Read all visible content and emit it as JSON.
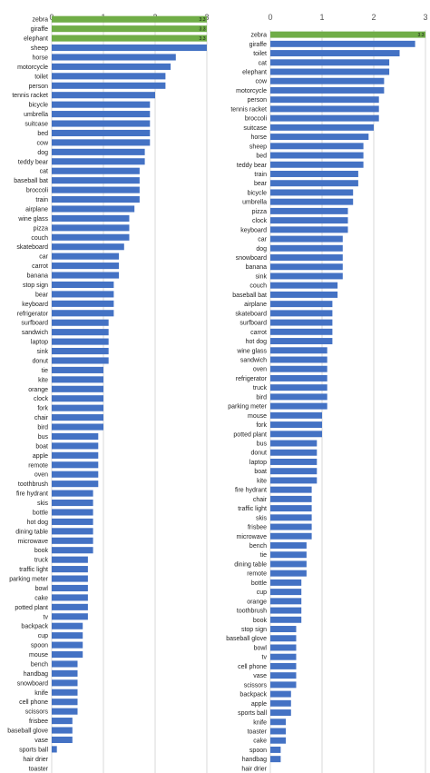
{
  "colors": {
    "bar": "#4472c4",
    "highlight": "#70ad47",
    "grid": "#d9d9d9"
  },
  "chart_data": [
    {
      "type": "bar",
      "orientation": "horizontal",
      "title": "",
      "xlabel": "",
      "ylabel": "",
      "xlim": [
        0,
        3
      ],
      "ticks": [
        0,
        1,
        2,
        3
      ],
      "grid": true,
      "categories": [
        "zebra",
        "giraffe",
        "elephant",
        "sheep",
        "horse",
        "motorcycle",
        "toilet",
        "person",
        "tennis racket",
        "bicycle",
        "umbrella",
        "suitcase",
        "bed",
        "cow",
        "dog",
        "teddy bear",
        "cat",
        "baseball bat",
        "broccoli",
        "train",
        "airplane",
        "wine glass",
        "pizza",
        "couch",
        "skateboard",
        "car",
        "carrot",
        "banana",
        "stop sign",
        "bear",
        "keyboard",
        "refrigerator",
        "surfboard",
        "sandwich",
        "laptop",
        "sink",
        "donut",
        "tie",
        "kite",
        "orange",
        "clock",
        "fork",
        "chair",
        "bird",
        "bus",
        "boat",
        "apple",
        "remote",
        "oven",
        "toothbrush",
        "fire hydrant",
        "skis",
        "bottle",
        "hot dog",
        "dining table",
        "microwave",
        "book",
        "truck",
        "traffic light",
        "parking meter",
        "bowl",
        "cake",
        "potted plant",
        "tv",
        "backpack",
        "cup",
        "spoon",
        "mouse",
        "bench",
        "handbag",
        "snowboard",
        "knife",
        "cell phone",
        "scissors",
        "frisbee",
        "baseball glove",
        "vase",
        "sports ball",
        "hair drier",
        "toaster"
      ],
      "values": [
        3.0,
        3.0,
        3.0,
        3.0,
        2.4,
        2.3,
        2.2,
        2.2,
        2.0,
        1.9,
        1.9,
        1.9,
        1.9,
        1.9,
        1.8,
        1.8,
        1.7,
        1.7,
        1.7,
        1.7,
        1.6,
        1.5,
        1.5,
        1.5,
        1.4,
        1.3,
        1.3,
        1.3,
        1.2,
        1.2,
        1.2,
        1.2,
        1.1,
        1.1,
        1.1,
        1.1,
        1.1,
        1.0,
        1.0,
        1.0,
        1.0,
        1.0,
        1.0,
        1.0,
        0.9,
        0.9,
        0.9,
        0.9,
        0.9,
        0.9,
        0.8,
        0.8,
        0.8,
        0.8,
        0.8,
        0.8,
        0.8,
        0.7,
        0.7,
        0.7,
        0.7,
        0.7,
        0.7,
        0.7,
        0.6,
        0.6,
        0.6,
        0.6,
        0.5,
        0.5,
        0.5,
        0.5,
        0.5,
        0.5,
        0.4,
        0.4,
        0.4,
        0.1,
        0.0,
        0.0
      ],
      "highlighted": [
        "zebra",
        "giraffe",
        "elephant"
      ],
      "value_labels": {
        "zebra": "3.3",
        "giraffe": "3.3",
        "elephant": "3.3"
      }
    },
    {
      "type": "bar",
      "orientation": "horizontal",
      "title": "",
      "xlabel": "",
      "ylabel": "",
      "xlim": [
        0,
        3
      ],
      "ticks": [
        0,
        1,
        2,
        3
      ],
      "grid": true,
      "categories": [
        "zebra",
        "giraffe",
        "toilet",
        "cat",
        "elephant",
        "cow",
        "motorcycle",
        "person",
        "tennis racket",
        "broccoli",
        "suitcase",
        "horse",
        "sheep",
        "bed",
        "teddy bear",
        "train",
        "bear",
        "bicycle",
        "umbrella",
        "pizza",
        "clock",
        "keyboard",
        "car",
        "dog",
        "snowboard",
        "banana",
        "sink",
        "couch",
        "baseball bat",
        "airplane",
        "skateboard",
        "surfboard",
        "carrot",
        "hot dog",
        "wine glass",
        "sandwich",
        "oven",
        "refrigerator",
        "truck",
        "bird",
        "parking meter",
        "mouse",
        "fork",
        "potted plant",
        "bus",
        "donut",
        "laptop",
        "boat",
        "kite",
        "fire hydrant",
        "chair",
        "traffic light",
        "skis",
        "frisbee",
        "microwave",
        "bench",
        "tie",
        "dining table",
        "remote",
        "bottle",
        "cup",
        "orange",
        "toothbrush",
        "book",
        "stop sign",
        "baseball glove",
        "bowl",
        "tv",
        "cell phone",
        "vase",
        "scissors",
        "backpack",
        "apple",
        "sports ball",
        "knife",
        "toaster",
        "cake",
        "spoon",
        "handbag",
        "hair drier"
      ],
      "values": [
        3.0,
        2.8,
        2.5,
        2.3,
        2.3,
        2.2,
        2.2,
        2.1,
        2.1,
        2.1,
        2.0,
        1.9,
        1.8,
        1.8,
        1.8,
        1.7,
        1.7,
        1.6,
        1.6,
        1.5,
        1.5,
        1.5,
        1.4,
        1.4,
        1.4,
        1.4,
        1.4,
        1.3,
        1.3,
        1.2,
        1.2,
        1.2,
        1.2,
        1.2,
        1.1,
        1.1,
        1.1,
        1.1,
        1.1,
        1.1,
        1.1,
        1.0,
        1.0,
        1.0,
        0.9,
        0.9,
        0.9,
        0.9,
        0.9,
        0.8,
        0.8,
        0.8,
        0.8,
        0.8,
        0.8,
        0.7,
        0.7,
        0.7,
        0.7,
        0.6,
        0.6,
        0.6,
        0.6,
        0.6,
        0.5,
        0.5,
        0.5,
        0.5,
        0.5,
        0.5,
        0.5,
        0.4,
        0.4,
        0.4,
        0.3,
        0.3,
        0.3,
        0.2,
        0.2,
        0.0
      ],
      "highlighted": [
        "zebra"
      ],
      "value_labels": {
        "zebra": "3.3"
      }
    }
  ]
}
